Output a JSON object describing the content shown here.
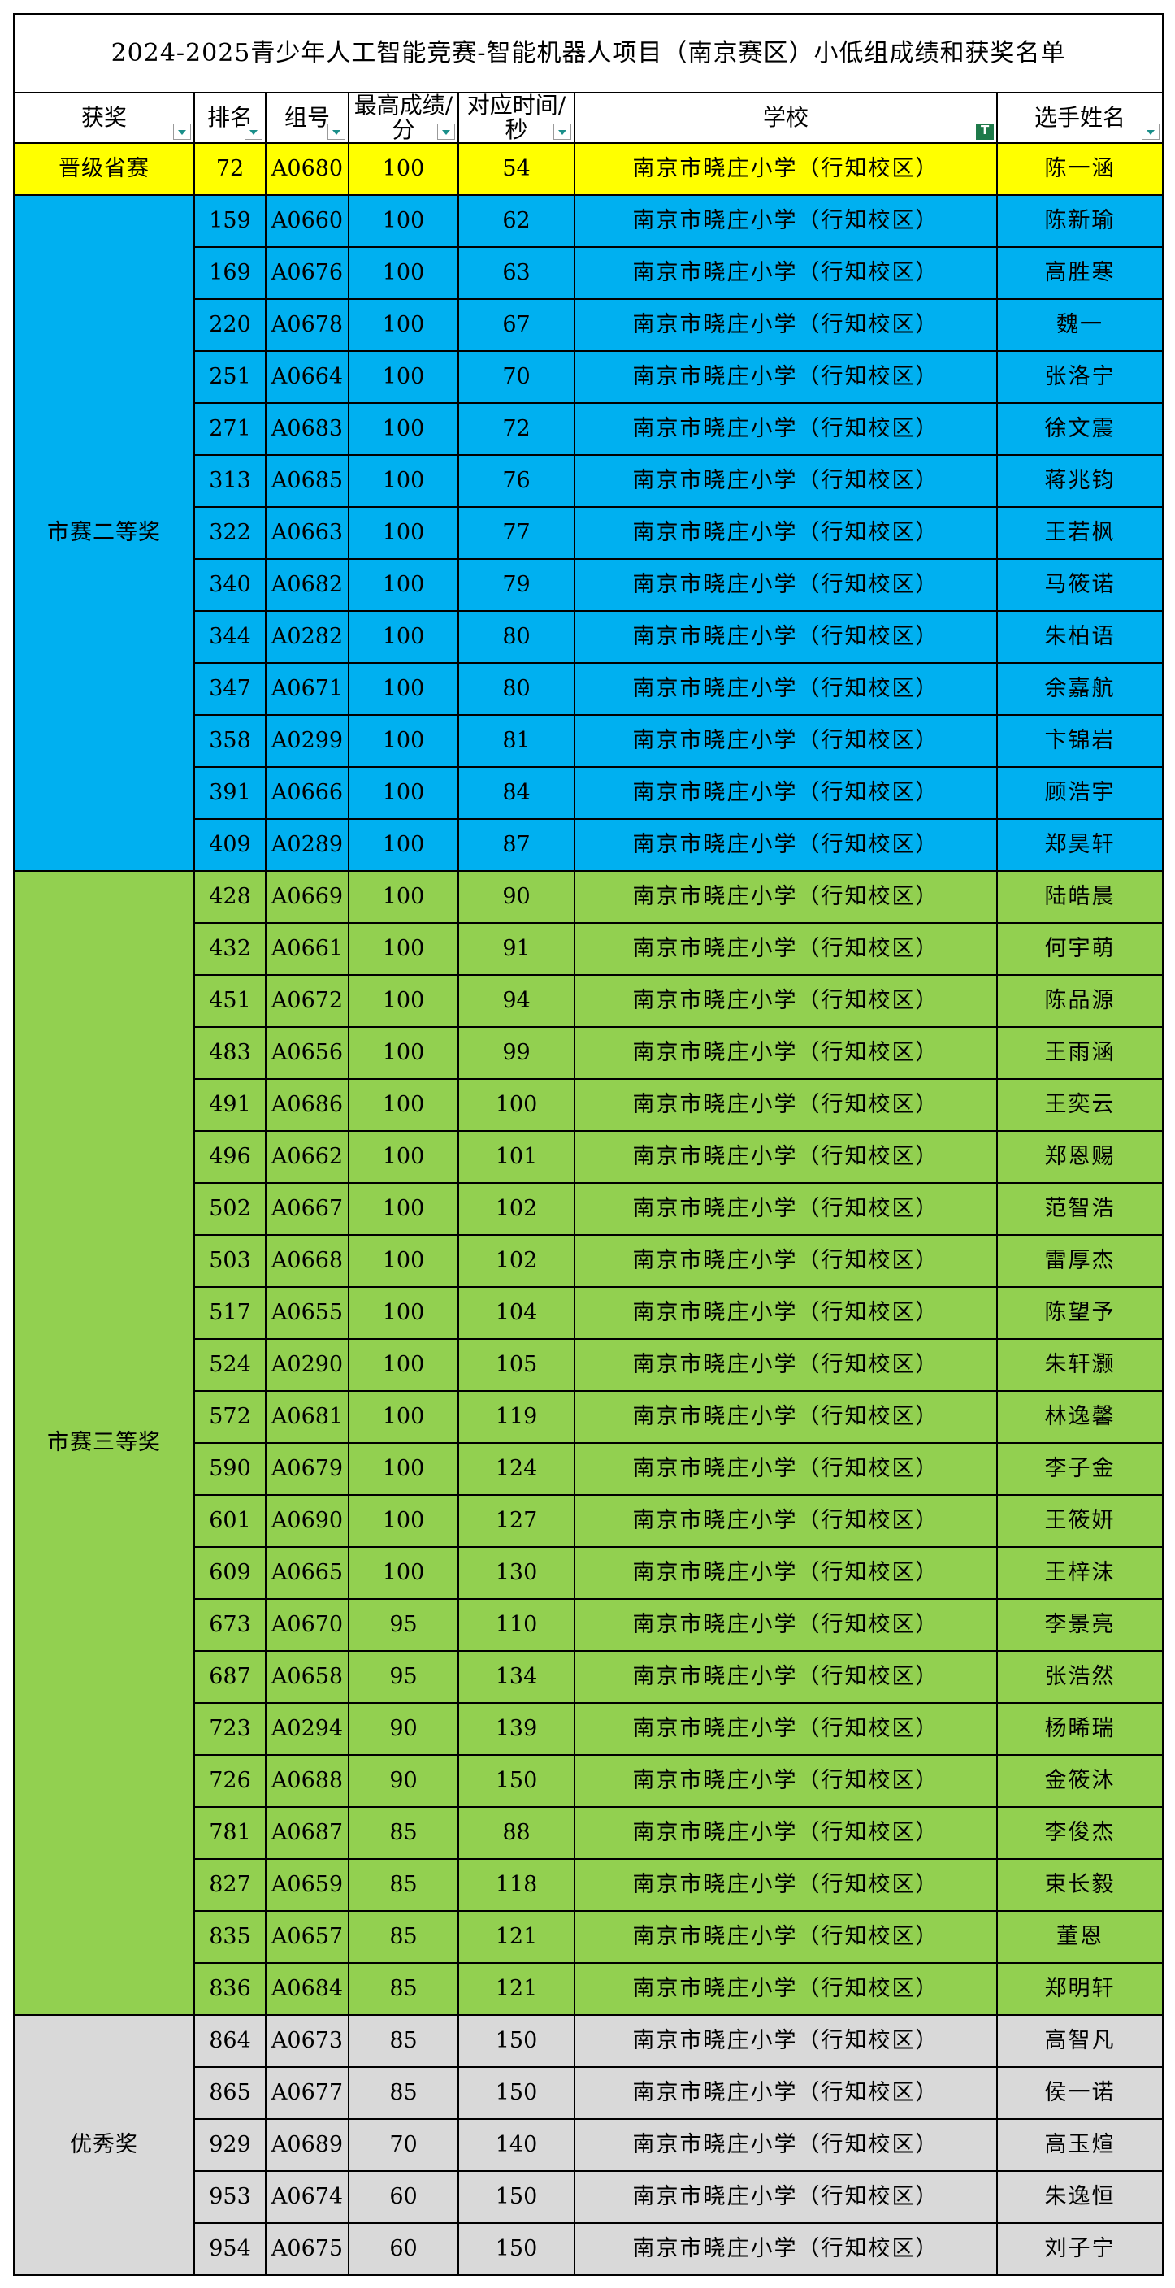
{
  "title": "2024-2025青少年人工智能竞赛-智能机器人项目（南京赛区）小低组成绩和获奖名单",
  "headers": [
    {
      "label": "获奖",
      "filter": "dropdown"
    },
    {
      "label": "排名",
      "filter": "dropdown"
    },
    {
      "label": "组号",
      "filter": "dropdown"
    },
    {
      "label": "最高成绩/分",
      "filter": "dropdown"
    },
    {
      "label": "对应时间/秒",
      "filter": "dropdown"
    },
    {
      "label": "学校",
      "filter": "active"
    },
    {
      "label": "选手姓名",
      "filter": "dropdown"
    }
  ],
  "colors": {
    "province": "#ffff00",
    "second": "#00b0f0",
    "third": "#92d050",
    "merit": "#d9d9d9"
  },
  "groups": [
    {
      "award": "晋级省赛",
      "style": "province",
      "rows": [
        {
          "rank": "72",
          "group": "A0680",
          "score": "100",
          "time": "54",
          "school": "南京市晓庄小学（行知校区）",
          "name": "陈一涵"
        }
      ]
    },
    {
      "award": "市赛二等奖",
      "style": "second",
      "rows": [
        {
          "rank": "159",
          "group": "A0660",
          "score": "100",
          "time": "62",
          "school": "南京市晓庄小学（行知校区）",
          "name": "陈新瑜"
        },
        {
          "rank": "169",
          "group": "A0676",
          "score": "100",
          "time": "63",
          "school": "南京市晓庄小学（行知校区）",
          "name": "高胜寒"
        },
        {
          "rank": "220",
          "group": "A0678",
          "score": "100",
          "time": "67",
          "school": "南京市晓庄小学（行知校区）",
          "name": "魏一"
        },
        {
          "rank": "251",
          "group": "A0664",
          "score": "100",
          "time": "70",
          "school": "南京市晓庄小学（行知校区）",
          "name": "张洛宁"
        },
        {
          "rank": "271",
          "group": "A0683",
          "score": "100",
          "time": "72",
          "school": "南京市晓庄小学（行知校区）",
          "name": "徐文震"
        },
        {
          "rank": "313",
          "group": "A0685",
          "score": "100",
          "time": "76",
          "school": "南京市晓庄小学（行知校区）",
          "name": "蒋兆钧"
        },
        {
          "rank": "322",
          "group": "A0663",
          "score": "100",
          "time": "77",
          "school": "南京市晓庄小学（行知校区）",
          "name": "王若枫"
        },
        {
          "rank": "340",
          "group": "A0682",
          "score": "100",
          "time": "79",
          "school": "南京市晓庄小学（行知校区）",
          "name": "马筱诺"
        },
        {
          "rank": "344",
          "group": "A0282",
          "score": "100",
          "time": "80",
          "school": "南京市晓庄小学（行知校区）",
          "name": "朱柏语"
        },
        {
          "rank": "347",
          "group": "A0671",
          "score": "100",
          "time": "80",
          "school": "南京市晓庄小学（行知校区）",
          "name": "余嘉航"
        },
        {
          "rank": "358",
          "group": "A0299",
          "score": "100",
          "time": "81",
          "school": "南京市晓庄小学（行知校区）",
          "name": "卞锦岩"
        },
        {
          "rank": "391",
          "group": "A0666",
          "score": "100",
          "time": "84",
          "school": "南京市晓庄小学（行知校区）",
          "name": "顾浩宇"
        },
        {
          "rank": "409",
          "group": "A0289",
          "score": "100",
          "time": "87",
          "school": "南京市晓庄小学（行知校区）",
          "name": "郑昊轩"
        }
      ]
    },
    {
      "award": "市赛三等奖",
      "style": "third",
      "rows": [
        {
          "rank": "428",
          "group": "A0669",
          "score": "100",
          "time": "90",
          "school": "南京市晓庄小学（行知校区）",
          "name": "陆皓晨"
        },
        {
          "rank": "432",
          "group": "A0661",
          "score": "100",
          "time": "91",
          "school": "南京市晓庄小学（行知校区）",
          "name": "何宇萌"
        },
        {
          "rank": "451",
          "group": "A0672",
          "score": "100",
          "time": "94",
          "school": "南京市晓庄小学（行知校区）",
          "name": "陈品源"
        },
        {
          "rank": "483",
          "group": "A0656",
          "score": "100",
          "time": "99",
          "school": "南京市晓庄小学（行知校区）",
          "name": "王雨涵"
        },
        {
          "rank": "491",
          "group": "A0686",
          "score": "100",
          "time": "100",
          "school": "南京市晓庄小学（行知校区）",
          "name": "王奕云"
        },
        {
          "rank": "496",
          "group": "A0662",
          "score": "100",
          "time": "101",
          "school": "南京市晓庄小学（行知校区）",
          "name": "郑恩赐"
        },
        {
          "rank": "502",
          "group": "A0667",
          "score": "100",
          "time": "102",
          "school": "南京市晓庄小学（行知校区）",
          "name": "范智浩"
        },
        {
          "rank": "503",
          "group": "A0668",
          "score": "100",
          "time": "102",
          "school": "南京市晓庄小学（行知校区）",
          "name": "雷厚杰"
        },
        {
          "rank": "517",
          "group": "A0655",
          "score": "100",
          "time": "104",
          "school": "南京市晓庄小学（行知校区）",
          "name": "陈望予"
        },
        {
          "rank": "524",
          "group": "A0290",
          "score": "100",
          "time": "105",
          "school": "南京市晓庄小学（行知校区）",
          "name": "朱轩灏"
        },
        {
          "rank": "572",
          "group": "A0681",
          "score": "100",
          "time": "119",
          "school": "南京市晓庄小学（行知校区）",
          "name": "林逸馨"
        },
        {
          "rank": "590",
          "group": "A0679",
          "score": "100",
          "time": "124",
          "school": "南京市晓庄小学（行知校区）",
          "name": "李子金"
        },
        {
          "rank": "601",
          "group": "A0690",
          "score": "100",
          "time": "127",
          "school": "南京市晓庄小学（行知校区）",
          "name": "王筱妍"
        },
        {
          "rank": "609",
          "group": "A0665",
          "score": "100",
          "time": "130",
          "school": "南京市晓庄小学（行知校区）",
          "name": "王梓沫"
        },
        {
          "rank": "673",
          "group": "A0670",
          "score": "95",
          "time": "110",
          "school": "南京市晓庄小学（行知校区）",
          "name": "李景亮"
        },
        {
          "rank": "687",
          "group": "A0658",
          "score": "95",
          "time": "134",
          "school": "南京市晓庄小学（行知校区）",
          "name": "张浩然"
        },
        {
          "rank": "723",
          "group": "A0294",
          "score": "90",
          "time": "139",
          "school": "南京市晓庄小学（行知校区）",
          "name": "杨晞瑞"
        },
        {
          "rank": "726",
          "group": "A0688",
          "score": "90",
          "time": "150",
          "school": "南京市晓庄小学（行知校区）",
          "name": "金筱沐"
        },
        {
          "rank": "781",
          "group": "A0687",
          "score": "85",
          "time": "88",
          "school": "南京市晓庄小学（行知校区）",
          "name": "李俊杰"
        },
        {
          "rank": "827",
          "group": "A0659",
          "score": "85",
          "time": "118",
          "school": "南京市晓庄小学（行知校区）",
          "name": "束长毅"
        },
        {
          "rank": "835",
          "group": "A0657",
          "score": "85",
          "time": "121",
          "school": "南京市晓庄小学（行知校区）",
          "name": "董恩"
        },
        {
          "rank": "836",
          "group": "A0684",
          "score": "85",
          "time": "121",
          "school": "南京市晓庄小学（行知校区）",
          "name": "郑明轩"
        }
      ]
    },
    {
      "award": "优秀奖",
      "style": "merit",
      "rows": [
        {
          "rank": "864",
          "group": "A0673",
          "score": "85",
          "time": "150",
          "school": "南京市晓庄小学（行知校区）",
          "name": "高智凡"
        },
        {
          "rank": "865",
          "group": "A0677",
          "score": "85",
          "time": "150",
          "school": "南京市晓庄小学（行知校区）",
          "name": "侯一诺"
        },
        {
          "rank": "929",
          "group": "A0689",
          "score": "70",
          "time": "140",
          "school": "南京市晓庄小学（行知校区）",
          "name": "高玉煊"
        },
        {
          "rank": "953",
          "group": "A0674",
          "score": "60",
          "time": "150",
          "school": "南京市晓庄小学（行知校区）",
          "name": "朱逸恒"
        },
        {
          "rank": "954",
          "group": "A0675",
          "score": "60",
          "time": "150",
          "school": "南京市晓庄小学（行知校区）",
          "name": "刘子宁"
        }
      ]
    }
  ]
}
